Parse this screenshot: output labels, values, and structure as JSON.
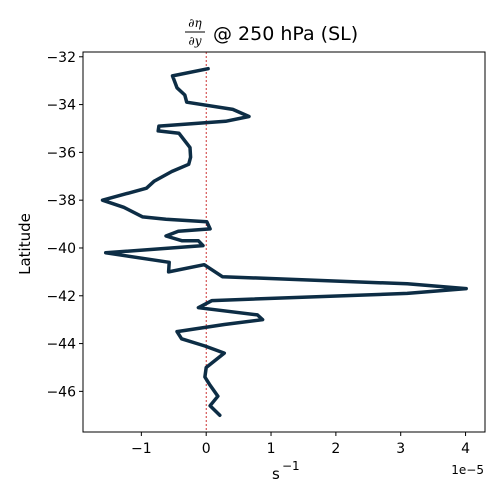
{
  "chart_data": {
    "type": "line",
    "title": {
      "fraction_numerator": "∂η",
      "fraction_denominator": "∂y",
      "rest": "@ 250 hPa (SL)"
    },
    "xlabel": {
      "base": "s",
      "exponent": "−1"
    },
    "ylabel": "Latitude",
    "x_offset_label": "1e−5",
    "x_scale": 1e-05,
    "xlim": [
      -1.9,
      4.3
    ],
    "ylim": [
      -47.7,
      -31.8
    ],
    "x_ticks": [
      -1,
      0,
      1,
      2,
      3,
      4
    ],
    "x_tick_labels": [
      "−1",
      "0",
      "1",
      "2",
      "3",
      "4"
    ],
    "y_ticks": [
      -46,
      -44,
      -42,
      -40,
      -38,
      -36,
      -34,
      -32
    ],
    "y_tick_labels": [
      "−46",
      "−44",
      "−42",
      "−40",
      "−38",
      "−36",
      "−34",
      "−32"
    ],
    "reference_line": {
      "x": 0,
      "color": "#c00000",
      "style": "dashed"
    },
    "line_color": "#0d2d45",
    "series": [
      {
        "x": [
          0.03,
          -0.52,
          -0.45,
          -0.33,
          -0.3,
          0.41,
          0.66,
          0.3,
          -0.73,
          -0.74,
          -0.42,
          -0.25,
          -0.24,
          -0.27,
          -0.53,
          -0.8,
          -0.92,
          -1.6,
          -1.27,
          -0.98,
          -0.62,
          0.01,
          0.06,
          -0.43,
          -0.62,
          -0.37,
          -0.12,
          -0.05,
          -1.55,
          -0.57,
          -0.58,
          -0.03,
          0.25,
          3.1,
          4.01,
          3.1,
          0.09,
          -0.12,
          0.79,
          0.87,
          0.28,
          -0.45,
          -0.38,
          -0.02,
          0.28,
          0.0,
          -0.02,
          0.05,
          0.18,
          0.06,
          0.21
        ],
        "y": [
          -32.5,
          -32.8,
          -33.3,
          -33.6,
          -33.9,
          -34.2,
          -34.5,
          -34.7,
          -34.9,
          -35.1,
          -35.2,
          -35.8,
          -36.2,
          -36.5,
          -36.8,
          -37.2,
          -37.5,
          -38.0,
          -38.3,
          -38.7,
          -38.8,
          -38.9,
          -39.2,
          -39.3,
          -39.5,
          -39.7,
          -39.7,
          -39.9,
          -40.2,
          -40.6,
          -41.0,
          -40.7,
          -41.2,
          -41.5,
          -41.7,
          -41.9,
          -42.2,
          -42.5,
          -42.8,
          -43.0,
          -43.2,
          -43.5,
          -43.8,
          -44.1,
          -44.4,
          -45.0,
          -45.4,
          -45.7,
          -46.2,
          -46.6,
          -47.0
        ]
      }
    ]
  }
}
